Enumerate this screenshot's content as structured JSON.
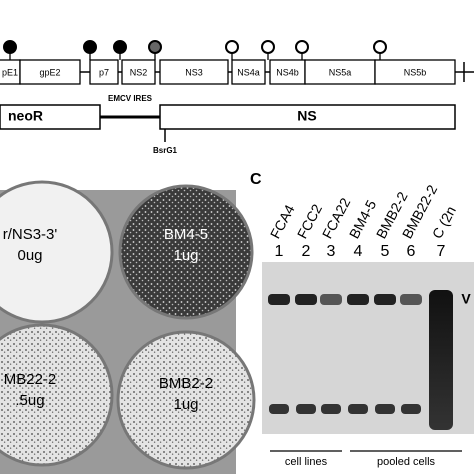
{
  "genome_map": {
    "genes": [
      "pE1",
      "gpE2",
      "p7",
      "NS2",
      "NS3",
      "NS4a",
      "NS4b",
      "NS5a",
      "NS5b"
    ]
  },
  "construct": {
    "marker": "neoR",
    "ires": "EMCV IRES",
    "insert": "NS",
    "site": "BsrG1"
  },
  "plates": [
    {
      "name": "r/NS3-3'",
      "amount": "0ug"
    },
    {
      "name": "BM4-5",
      "amount": "1ug"
    },
    {
      "name": "MB22-2",
      "amount": ".5ug"
    },
    {
      "name": "BMB2-2",
      "amount": "1ug"
    }
  ],
  "gel": {
    "panel_label": "C",
    "lanes": [
      {
        "label": "FCA4",
        "number": "1"
      },
      {
        "label": "FCC2",
        "number": "2"
      },
      {
        "label": "FCA22",
        "number": "3"
      },
      {
        "label": "BM4-5",
        "number": "4"
      },
      {
        "label": "BMB2-2",
        "number": "5"
      },
      {
        "label": "BMB22-2",
        "number": "6"
      },
      {
        "label": "C (2n",
        "number": "7"
      }
    ],
    "band_label": "V",
    "groups": [
      "cell lines",
      "pooled cells"
    ]
  }
}
